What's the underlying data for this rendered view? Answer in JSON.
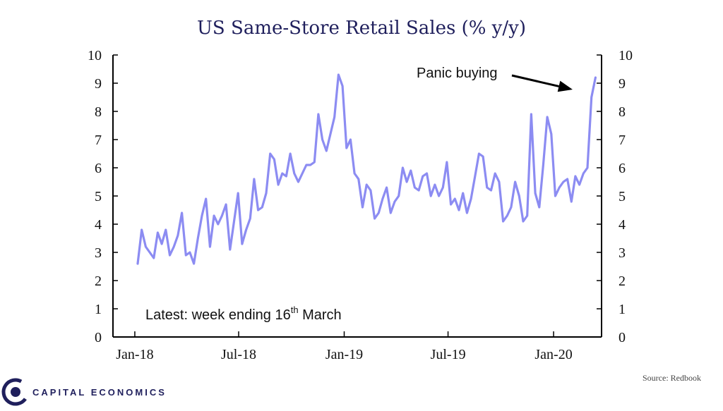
{
  "chart_data": {
    "type": "line",
    "title": "US Same-Store Retail Sales (% y/y)",
    "xlabel": "",
    "ylabel": "",
    "ylim": [
      0,
      10
    ],
    "y_ticks": [
      "0",
      "1",
      "2",
      "3",
      "4",
      "5",
      "6",
      "7",
      "8",
      "9",
      "10"
    ],
    "x_ticks": [
      "Jan-18",
      "Jul-18",
      "Jan-19",
      "Jul-19",
      "Jan-20"
    ],
    "x_range": [
      "2018-01-06",
      "2020-03-16"
    ],
    "grid": false,
    "legend": "none",
    "color": "#8c8cf2",
    "annotation": {
      "text": "Panic buying",
      "points_to": [
        "2020-03-16",
        9.2
      ]
    },
    "note": {
      "text": "Latest: week ending  16",
      "sup": "th",
      "suffix": "  March"
    },
    "series": [
      {
        "start": "2018-01-06",
        "frequency": "weekly",
        "values": [
          2.6,
          3.8,
          3.2,
          3.0,
          2.8,
          3.7,
          3.3,
          3.8,
          2.9,
          3.2,
          3.6,
          4.4,
          2.9,
          3.0,
          2.6,
          3.5,
          4.3,
          4.9,
          3.2,
          4.3,
          4.0,
          4.3,
          4.7,
          3.1,
          4.1,
          5.1,
          3.3,
          3.8,
          4.2,
          5.6,
          4.5,
          4.6,
          5.1,
          6.5,
          6.3,
          5.4,
          5.8,
          5.7,
          6.5,
          5.8,
          5.5,
          5.8,
          6.1,
          6.1,
          6.2,
          7.9,
          7.0,
          6.6,
          7.2,
          7.8,
          9.3,
          8.9,
          6.7,
          7.0,
          5.8,
          5.6,
          4.6,
          5.4,
          5.2,
          4.2,
          4.4,
          4.9,
          5.3,
          4.4,
          4.8,
          5.0,
          6.0,
          5.5,
          5.9,
          5.3,
          5.2,
          5.7,
          5.8,
          5.0,
          5.4,
          5.0,
          5.3,
          6.2,
          4.7,
          4.9,
          4.5,
          5.1,
          4.4,
          4.9,
          5.7,
          6.5,
          6.4,
          5.3,
          5.2,
          5.8,
          5.5,
          4.1,
          4.3,
          4.6,
          5.5,
          5.0,
          4.1,
          4.3,
          7.9,
          5.1,
          4.6,
          6.1,
          7.8,
          7.2,
          5.0,
          5.3,
          5.5,
          5.6,
          4.8,
          5.7,
          5.4,
          5.8,
          6.0,
          8.5,
          9.2
        ]
      }
    ]
  },
  "footer": {
    "source": "Source: Redbook",
    "logo_text": "CAPITAL ECONOMICS"
  }
}
